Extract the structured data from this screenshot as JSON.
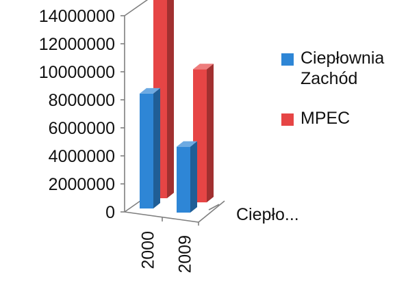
{
  "chart_data": {
    "type": "bar",
    "style": "3d-clustered-column",
    "categories": [
      "2000",
      "2009"
    ],
    "series": [
      {
        "name": "Ciepłownia Zachód",
        "name_lines": [
          "Ciepłownia",
          "Zachód"
        ],
        "values": [
          8200000,
          4700000
        ],
        "color": "#2e86d6"
      },
      {
        "name": "MPEC",
        "name_lines": [
          "MPEC"
        ],
        "values": [
          14200000,
          9500000
        ],
        "color": "#e64545"
      }
    ],
    "yticks": [
      "0",
      "2000000",
      "4000000",
      "6000000",
      "8000000",
      "10000000",
      "12000000",
      "14000000"
    ],
    "ylim": [
      0,
      14000000
    ],
    "depth_label": "Ciepło...",
    "legend_position": "right",
    "grid": false
  }
}
